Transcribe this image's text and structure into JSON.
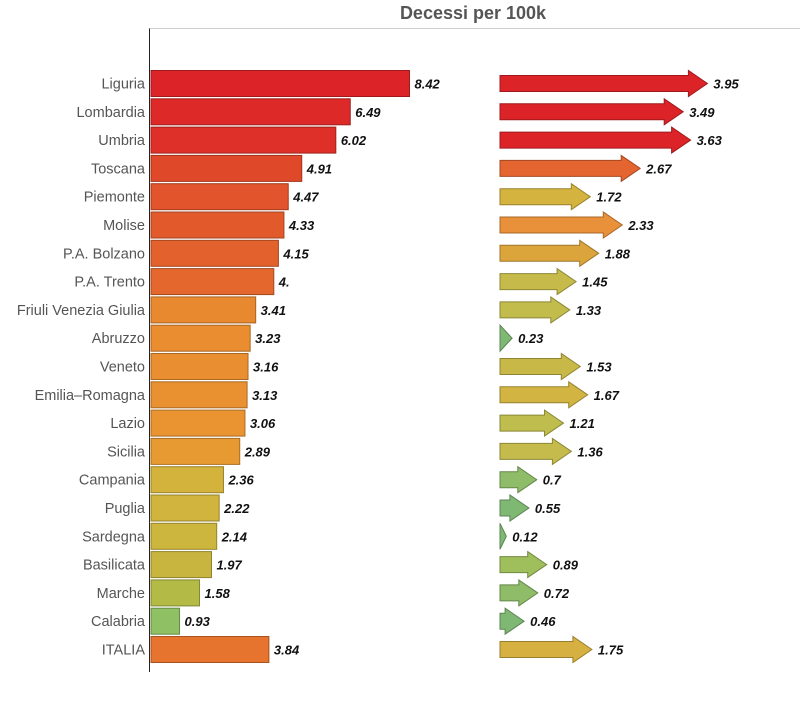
{
  "chart_data": [
    {
      "type": "bar",
      "orientation": "horizontal",
      "title": "Decessi per 100k",
      "categories": [
        "Liguria",
        "Lombardia",
        "Umbria",
        "Toscana",
        "Piemonte",
        "Molise",
        "P.A. Bolzano",
        "P.A. Trento",
        "Friuli Venezia Giulia",
        "Abruzzo",
        "Veneto",
        "Emilia–Romagna",
        "Lazio",
        "Sicilia",
        "Campania",
        "Puglia",
        "Sardegna",
        "Basilicata",
        "Marche",
        "Calabria",
        "ITALIA"
      ],
      "values": [
        8.42,
        6.49,
        6.02,
        4.91,
        4.47,
        4.33,
        4.15,
        4.0,
        3.41,
        3.23,
        3.16,
        3.13,
        3.06,
        2.89,
        2.36,
        2.22,
        2.14,
        1.97,
        1.58,
        0.93,
        3.84
      ],
      "labels": [
        "8.42",
        "6.49",
        "6.02",
        "4.91",
        "4.47",
        "4.33",
        "4.15",
        "4.",
        "3.41",
        "3.23",
        "3.16",
        "3.13",
        "3.06",
        "2.89",
        "2.36",
        "2.22",
        "2.14",
        "1.97",
        "1.58",
        "0.93",
        "3.84"
      ],
      "colors": [
        "#dc2428",
        "#dd2a28",
        "#de3028",
        "#e0482a",
        "#e2542b",
        "#e25a2c",
        "#e3612c",
        "#e4672d",
        "#e8892f",
        "#e98d30",
        "#e98f31",
        "#e99131",
        "#e99431",
        "#e89a32",
        "#d3b33c",
        "#d0b43d",
        "#cdb63e",
        "#c8b540",
        "#b3bb46",
        "#8fc063",
        "#e6732e"
      ]
    },
    {
      "type": "bar",
      "style": "arrows",
      "categories": [
        "Liguria",
        "Lombardia",
        "Umbria",
        "Toscana",
        "Piemonte",
        "Molise",
        "P.A. Bolzano",
        "P.A. Trento",
        "Friuli Venezia Giulia",
        "Abruzzo",
        "Veneto",
        "Emilia–Romagna",
        "Lazio",
        "Sicilia",
        "Campania",
        "Puglia",
        "Sardegna",
        "Basilicata",
        "Marche",
        "Calabria",
        "ITALIA"
      ],
      "values": [
        3.95,
        3.49,
        3.63,
        2.67,
        1.72,
        2.33,
        1.88,
        1.45,
        1.33,
        0.23,
        1.53,
        1.67,
        1.21,
        1.36,
        0.7,
        0.55,
        0.12,
        0.89,
        0.72,
        0.46,
        1.75
      ],
      "labels": [
        "3.95",
        "3.49",
        "3.63",
        "2.67",
        "1.72",
        "2.33",
        "1.88",
        "1.45",
        "1.33",
        "0.23",
        "1.53",
        "1.67",
        "1.21",
        "1.36",
        "0.7",
        "0.55",
        "0.12",
        "0.89",
        "0.72",
        "0.46",
        "1.75"
      ],
      "colors": [
        "#dc2428",
        "#dc2428",
        "#dc2428",
        "#e46530",
        "#d4b43e",
        "#e8913a",
        "#dca53c",
        "#c6bb4a",
        "#c2bc4c",
        "#7fb873",
        "#c8b848",
        "#d2b443",
        "#bfbd4e",
        "#c4bb4c",
        "#8ebc68",
        "#7fb873",
        "#7fb873",
        "#9fbe5c",
        "#8ebc68",
        "#7fb873",
        "#d6b040"
      ]
    }
  ]
}
